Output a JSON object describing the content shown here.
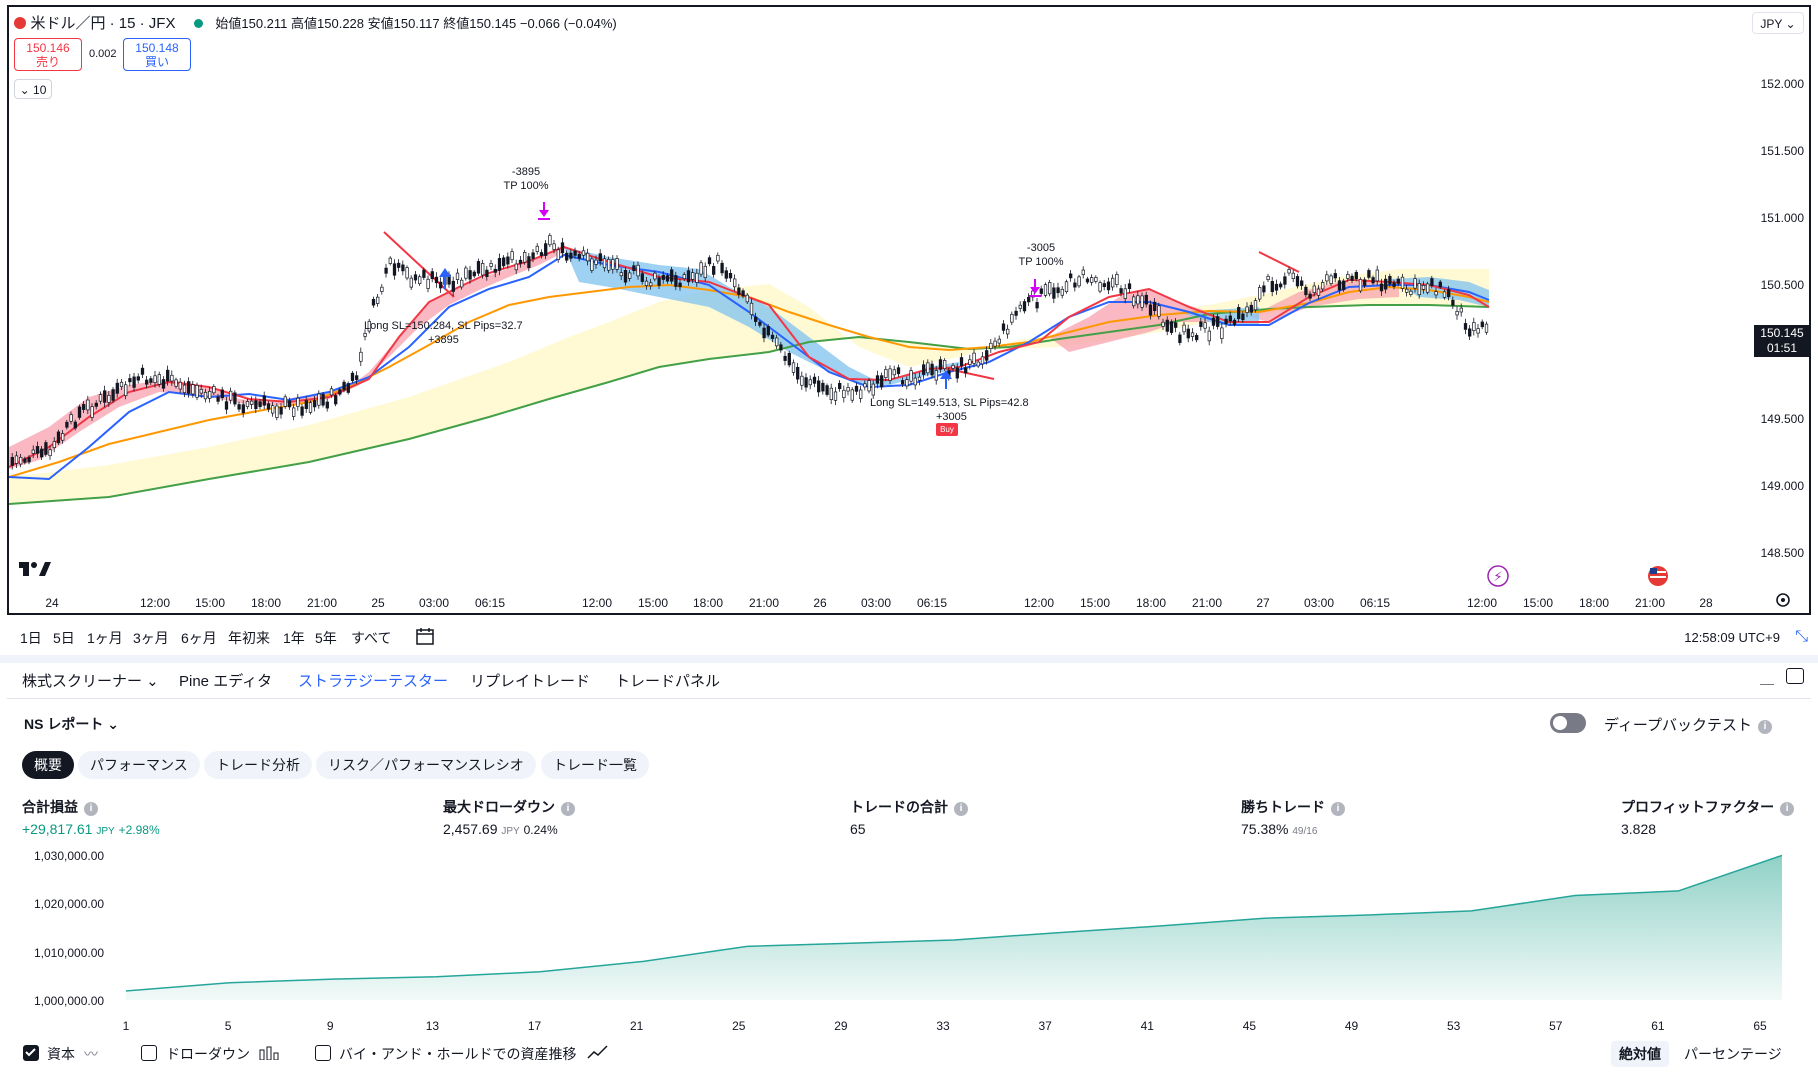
{
  "header": {
    "symbol_title": "米ドル／円 · 15 · JFX",
    "ohlc": "始値150.211 高値150.228 安値150.117 終値150.145 −0.066 (−0.04%)",
    "sell_price": "150.146",
    "sell_label": "売り",
    "spread": "0.002",
    "buy_price": "150.148",
    "buy_label": "買い",
    "volume_toggle": "⌄ 10",
    "currency": "JPY ⌄"
  },
  "price_axis": {
    "labels": [
      "152.000",
      "151.500",
      "151.000",
      "150.500",
      "150.000",
      "149.500",
      "149.000",
      "148.500"
    ],
    "current_price": "150.145",
    "countdown": "01:51"
  },
  "time_axis": {
    "labels": [
      "24",
      "12:00",
      "15:00",
      "18:00",
      "21:00",
      "25",
      "03:00",
      "06:15",
      "12:00",
      "15:00",
      "18:00",
      "21:00",
      "26",
      "03:00",
      "06:15",
      "12:00",
      "15:00",
      "18:00",
      "21:00",
      "27",
      "03:00",
      "06:15",
      "12:00",
      "15:00",
      "18:00",
      "21:00",
      "28"
    ]
  },
  "annotations": {
    "trade1_top": "-3895",
    "trade1_tp": "TP 100%",
    "trade1_entry": "Long SL=150.284, SL Pips=32.7",
    "trade1_pnl": "+3895",
    "trade2_top": "-3005",
    "trade2_tp": "TP 100%",
    "trade2_entry": "Long SL=149.513, SL Pips=42.8",
    "trade2_pnl": "+3005",
    "buy_badge": "Buy"
  },
  "toolbar": {
    "ranges": [
      "1日",
      "5日",
      "1ヶ月",
      "3ヶ月",
      "6ヶ月",
      "年初来",
      "1年",
      "5年",
      "すべて"
    ],
    "clock": "12:58:09 UTC+9"
  },
  "panel": {
    "tabs": [
      "株式スクリーナー ⌄",
      "Pine エディタ",
      "ストラテジーテスター",
      "リプレイトレード",
      "トレードパネル"
    ],
    "report_title": "NS レポート ⌄",
    "deep_backtest": "ディープバックテスト",
    "subtabs": [
      "概要",
      "パフォーマンス",
      "トレード分析",
      "リスク／パフォーマンスレシオ",
      "トレード一覧"
    ]
  },
  "metrics": {
    "total_pnl_label": "合計損益",
    "total_pnl_value": "+29,817.61",
    "total_pnl_unit": "JPY",
    "total_pnl_pct": "+2.98%",
    "max_dd_label": "最大ドローダウン",
    "max_dd_value": "2,457.69",
    "max_dd_unit": "JPY",
    "max_dd_pct": "0.24%",
    "total_trades_label": "トレードの合計",
    "total_trades_value": "65",
    "win_label": "勝ちトレード",
    "win_value": "75.38%",
    "win_ratio": "49/16",
    "pf_label": "プロフィットファクター",
    "pf_value": "3.828"
  },
  "equity_chart": {
    "y_labels": [
      "1,030,000.00",
      "1,020,000.00",
      "1,010,000.00",
      "1,000,000.00"
    ],
    "x_labels": [
      "1",
      "5",
      "9",
      "13",
      "17",
      "21",
      "25",
      "29",
      "33",
      "37",
      "41",
      "45",
      "49",
      "53",
      "57",
      "61",
      "65"
    ]
  },
  "legend": {
    "equity": "資本",
    "drawdown": "ドローダウン",
    "buy_hold": "バイ・アンド・ホールドでの資産推移",
    "absolute": "絶対値",
    "percent": "パーセンテージ"
  },
  "colors": {
    "accent": "#2962ff",
    "up_red": "#f23645",
    "green": "#089981",
    "ema_fast_red": "#f23645",
    "ema_blue": "#2962ff",
    "ema_orange": "#ff9800",
    "ema_green": "#43a047"
  },
  "chart_data": {
    "type": "line",
    "title": "",
    "x": [
      1,
      5,
      9,
      13,
      17,
      21,
      25,
      29,
      33,
      37,
      41,
      45,
      49,
      53,
      57,
      61,
      65
    ],
    "series": [
      {
        "name": "資本",
        "values": [
          1000000,
          1001800,
          1002600,
          1003100,
          1004200,
          1006500,
          1009800,
          1010500,
          1011200,
          1012800,
          1014300,
          1016000,
          1016700,
          1017600,
          1021000,
          1022000,
          1029817.61
        ]
      }
    ],
    "xlabel": "",
    "ylabel": "",
    "ylim": [
      998000,
      1031000
    ]
  }
}
